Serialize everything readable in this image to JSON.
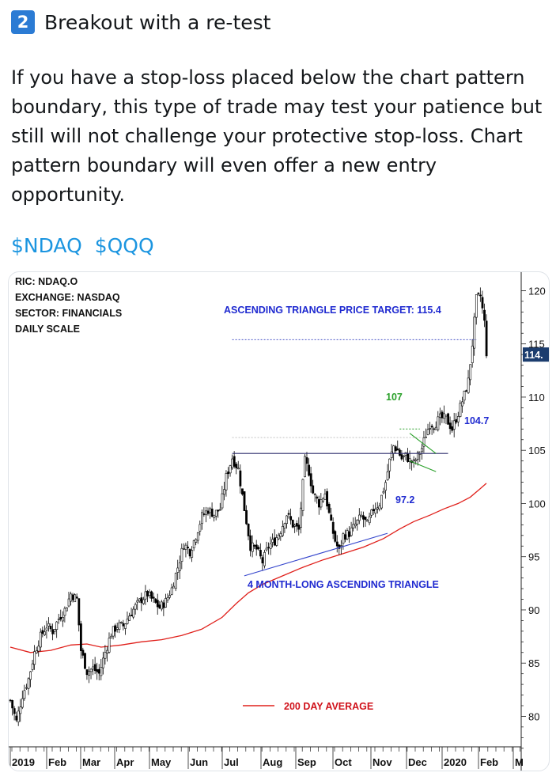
{
  "post": {
    "number_badge": "2",
    "heading": "Breakout with a re-test",
    "body": "If you have a stop-loss placed below the chart pattern boundary, this type of trade may test your patience but still will not challenge your protective stop-loss. Chart pattern boundary will even offer a new entry opportunity.",
    "hashtags": [
      "$NDAQ",
      "$QQQ"
    ]
  },
  "chart_data": {
    "type": "line",
    "info_lines": [
      "RIC: NDAQ.O",
      "EXCHANGE: NASDAQ",
      "SECTOR: FINANCIALS",
      "DAILY SCALE"
    ],
    "y_ticks": [
      "120",
      "115",
      "110",
      "105",
      "100",
      "95",
      "90",
      "85",
      "80"
    ],
    "ylim": [
      76,
      121
    ],
    "x_labels": [
      "2019",
      "Feb",
      "Mar",
      "Apr",
      "May",
      "Jun",
      "Jul",
      "Aug",
      "Sep",
      "Oct",
      "Nov",
      "Dec",
      "2020",
      "Feb",
      "M"
    ],
    "last_price_label": "114.",
    "annotations": {
      "price_target": "ASCENDING TRIANGLE  PRICE TARGET: 115.4",
      "resistance": "104.7",
      "support": "97.2",
      "flag_high": "107",
      "pattern": "4 MONTH-LONG ASCENDING TRIANGLE",
      "legend_ma": "200 DAY AVERAGE"
    },
    "colors": {
      "price": "#000000",
      "ma": "#e0201b",
      "resistance_line": "#2a2a6a",
      "support_line": "#3344cc",
      "target_line": "#4a56c8",
      "flag": "#2aa02a",
      "label_blue": "#1f2ad0",
      "label_red": "#d0121b",
      "badge_bg": "#1c3d6e"
    },
    "price_series": [
      [
        0,
        81.5
      ],
      [
        3,
        79.5
      ],
      [
        6,
        82
      ],
      [
        9,
        83.5
      ],
      [
        12,
        86
      ],
      [
        15,
        87.5
      ],
      [
        18,
        88.5
      ],
      [
        21,
        88
      ],
      [
        24,
        89.2
      ],
      [
        27,
        90
      ],
      [
        30,
        91.5
      ],
      [
        33,
        91
      ],
      [
        35,
        86.2
      ],
      [
        38,
        84.2
      ],
      [
        41,
        84.5
      ],
      [
        44,
        84
      ],
      [
        47,
        86
      ],
      [
        50,
        87.8
      ],
      [
        53,
        88.5
      ],
      [
        56,
        88.5
      ],
      [
        59,
        89.5
      ],
      [
        62,
        90.3
      ],
      [
        65,
        91
      ],
      [
        68,
        91.5
      ],
      [
        71,
        90.8
      ],
      [
        74,
        90.2
      ],
      [
        77,
        90.8
      ],
      [
        80,
        92
      ],
      [
        83,
        94
      ],
      [
        86,
        96.2
      ],
      [
        89,
        95.5
      ],
      [
        92,
        97
      ],
      [
        95,
        98.8
      ],
      [
        98,
        99.4
      ],
      [
        101,
        99
      ],
      [
        104,
        99.5
      ],
      [
        107,
        102.5
      ],
      [
        110,
        104.3
      ],
      [
        113,
        103.2
      ],
      [
        116,
        99.5
      ],
      [
        119,
        96
      ],
      [
        122,
        95.7
      ],
      [
        125,
        94.5
      ],
      [
        128,
        96
      ],
      [
        131,
        96.5
      ],
      [
        134,
        97.5
      ],
      [
        137,
        99
      ],
      [
        140,
        98
      ],
      [
        143,
        97.5
      ],
      [
        146,
        104
      ],
      [
        148,
        103
      ],
      [
        150,
        101
      ],
      [
        153,
        100
      ],
      [
        156,
        101
      ],
      [
        159,
        98
      ],
      [
        161,
        96.5
      ],
      [
        163,
        95.5
      ],
      [
        165,
        97
      ],
      [
        168,
        97.2
      ],
      [
        171,
        98
      ],
      [
        174,
        98.8
      ],
      [
        177,
        98
      ],
      [
        180,
        99.5
      ],
      [
        183,
        100
      ],
      [
        186,
        102
      ],
      [
        188,
        104
      ],
      [
        190,
        105.4
      ],
      [
        192,
        105
      ],
      [
        194,
        104.2
      ],
      [
        196,
        104.5
      ],
      [
        198,
        104
      ],
      [
        200,
        103.8
      ],
      [
        202,
        104.5
      ],
      [
        204,
        105.2
      ],
      [
        206,
        106.5
      ],
      [
        208,
        107.5
      ],
      [
        210,
        107.4
      ],
      [
        213,
        108
      ],
      [
        216,
        108
      ],
      [
        219,
        107
      ],
      [
        222,
        108.5
      ],
      [
        225,
        110.2
      ],
      [
        227,
        111.5
      ],
      [
        229,
        115
      ],
      [
        231,
        119.2
      ],
      [
        233,
        119.5
      ],
      [
        235,
        117
      ],
      [
        236,
        114.2
      ]
    ],
    "ma_series": [
      [
        0,
        86.5
      ],
      [
        10,
        86
      ],
      [
        20,
        86.2
      ],
      [
        30,
        86.7
      ],
      [
        38,
        86.8
      ],
      [
        45,
        86.5
      ],
      [
        55,
        86.7
      ],
      [
        65,
        87
      ],
      [
        75,
        87.2
      ],
      [
        85,
        87.6
      ],
      [
        95,
        88.2
      ],
      [
        105,
        89.3
      ],
      [
        112,
        90.6
      ],
      [
        118,
        91.6
      ],
      [
        125,
        92.4
      ],
      [
        135,
        93.2
      ],
      [
        145,
        94
      ],
      [
        155,
        94.7
      ],
      [
        165,
        95.3
      ],
      [
        175,
        95.9
      ],
      [
        185,
        96.7
      ],
      [
        193,
        97.6
      ],
      [
        200,
        98.3
      ],
      [
        208,
        98.9
      ],
      [
        215,
        99.5
      ],
      [
        222,
        100
      ],
      [
        228,
        100.6
      ],
      [
        233,
        101.4
      ],
      [
        236,
        101.9
      ]
    ],
    "resistance": {
      "value": 104.7,
      "x_start": 110,
      "x_end": 217
    },
    "support": {
      "x_start": 116,
      "y_start": 93.2,
      "x_end": 187,
      "y_end": 97.2
    },
    "price_target": 115.4
  }
}
